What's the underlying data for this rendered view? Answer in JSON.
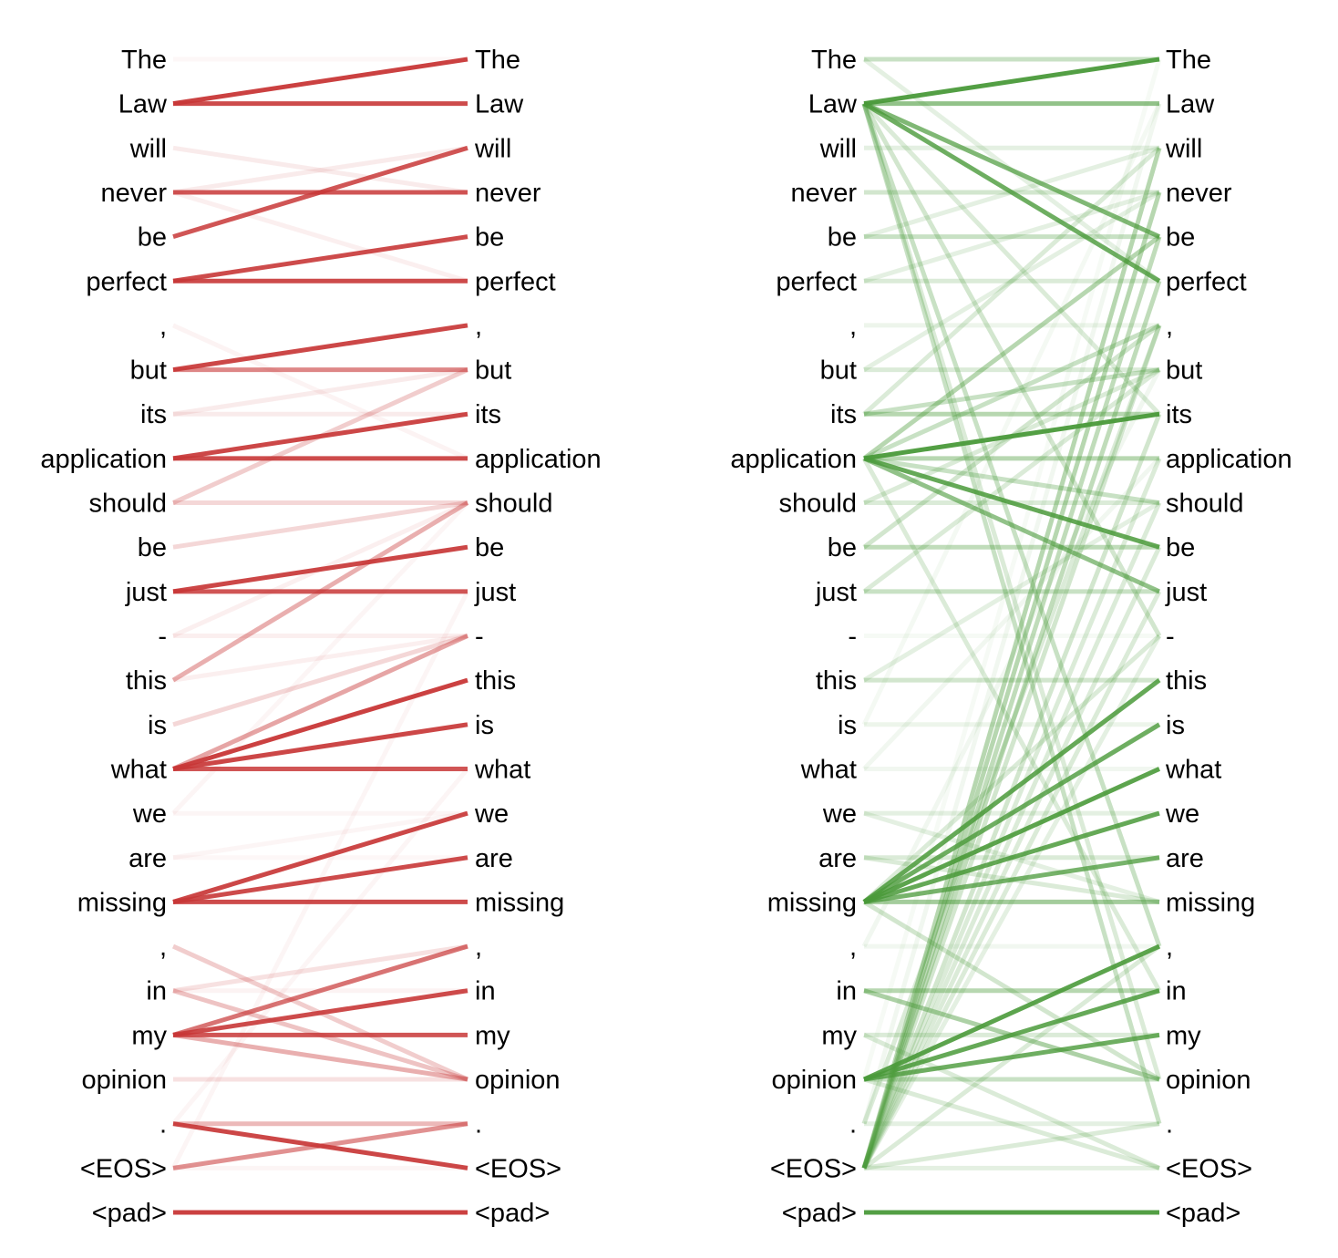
{
  "tokens": [
    "The",
    "Law",
    "will",
    "never",
    "be",
    "perfect",
    ",",
    "but",
    "its",
    "application",
    "should",
    "be",
    "just",
    "-",
    "this",
    "is",
    "what",
    "we",
    "are",
    "missing",
    ",",
    "in",
    "my",
    "opinion",
    ".",
    "<EOS>",
    "<pad>"
  ],
  "panels": [
    {
      "name": "red",
      "color": "#c83737",
      "links": [
        [
          0,
          0,
          0.04
        ],
        [
          1,
          0,
          0.95
        ],
        [
          1,
          1,
          0.9
        ],
        [
          2,
          3,
          0.1
        ],
        [
          3,
          2,
          0.1
        ],
        [
          3,
          3,
          0.85
        ],
        [
          4,
          2,
          0.85
        ],
        [
          3,
          5,
          0.08
        ],
        [
          5,
          4,
          0.9
        ],
        [
          5,
          5,
          0.9
        ],
        [
          7,
          6,
          0.92
        ],
        [
          7,
          7,
          0.6
        ],
        [
          6,
          9,
          0.06
        ],
        [
          8,
          8,
          0.1
        ],
        [
          8,
          7,
          0.1
        ],
        [
          9,
          8,
          0.92
        ],
        [
          9,
          9,
          0.9
        ],
        [
          10,
          7,
          0.25
        ],
        [
          10,
          10,
          0.2
        ],
        [
          11,
          10,
          0.2
        ],
        [
          12,
          11,
          0.92
        ],
        [
          12,
          12,
          0.85
        ],
        [
          13,
          13,
          0.08
        ],
        [
          13,
          10,
          0.08
        ],
        [
          14,
          10,
          0.4
        ],
        [
          15,
          13,
          0.2
        ],
        [
          14,
          13,
          0.08
        ],
        [
          16,
          13,
          0.45
        ],
        [
          16,
          14,
          0.95
        ],
        [
          16,
          15,
          0.92
        ],
        [
          16,
          16,
          0.85
        ],
        [
          17,
          17,
          0.05
        ],
        [
          18,
          17,
          0.05
        ],
        [
          18,
          18,
          0.04
        ],
        [
          19,
          17,
          0.92
        ],
        [
          19,
          18,
          0.9
        ],
        [
          19,
          19,
          0.9
        ],
        [
          17,
          10,
          0.05
        ],
        [
          20,
          23,
          0.25
        ],
        [
          21,
          21,
          0.06
        ],
        [
          21,
          20,
          0.15
        ],
        [
          22,
          20,
          0.7
        ],
        [
          22,
          21,
          0.9
        ],
        [
          22,
          22,
          0.85
        ],
        [
          22,
          23,
          0.4
        ],
        [
          21,
          23,
          0.3
        ],
        [
          23,
          23,
          0.15
        ],
        [
          24,
          25,
          0.92
        ],
        [
          24,
          24,
          0.35
        ],
        [
          25,
          24,
          0.55
        ],
        [
          25,
          25,
          0.05
        ],
        [
          26,
          26,
          0.95
        ],
        [
          25,
          12,
          0.05
        ],
        [
          24,
          16,
          0.05
        ]
      ]
    },
    {
      "name": "green",
      "color": "#4a9a3a",
      "links": [
        [
          0,
          0,
          0.3
        ],
        [
          0,
          5,
          0.15
        ],
        [
          1,
          0,
          0.95
        ],
        [
          1,
          1,
          0.6
        ],
        [
          1,
          4,
          0.7
        ],
        [
          1,
          5,
          0.8
        ],
        [
          1,
          8,
          0.2
        ],
        [
          1,
          13,
          0.25
        ],
        [
          1,
          20,
          0.3
        ],
        [
          1,
          24,
          0.3
        ],
        [
          1,
          23,
          0.2
        ],
        [
          2,
          2,
          0.15
        ],
        [
          3,
          3,
          0.25
        ],
        [
          4,
          4,
          0.3
        ],
        [
          4,
          2,
          0.15
        ],
        [
          5,
          5,
          0.2
        ],
        [
          5,
          3,
          0.15
        ],
        [
          6,
          6,
          0.1
        ],
        [
          7,
          7,
          0.2
        ],
        [
          7,
          3,
          0.15
        ],
        [
          8,
          8,
          0.4
        ],
        [
          8,
          7,
          0.3
        ],
        [
          8,
          2,
          0.2
        ],
        [
          9,
          8,
          0.95
        ],
        [
          9,
          9,
          0.4
        ],
        [
          9,
          11,
          0.85
        ],
        [
          9,
          12,
          0.6
        ],
        [
          9,
          4,
          0.4
        ],
        [
          9,
          6,
          0.3
        ],
        [
          9,
          10,
          0.3
        ],
        [
          9,
          21,
          0.2
        ],
        [
          10,
          10,
          0.2
        ],
        [
          10,
          7,
          0.2
        ],
        [
          11,
          11,
          0.35
        ],
        [
          11,
          6,
          0.25
        ],
        [
          12,
          12,
          0.3
        ],
        [
          12,
          7,
          0.2
        ],
        [
          13,
          13,
          0.05
        ],
        [
          14,
          14,
          0.25
        ],
        [
          14,
          10,
          0.15
        ],
        [
          15,
          15,
          0.1
        ],
        [
          16,
          16,
          0.08
        ],
        [
          17,
          17,
          0.15
        ],
        [
          17,
          19,
          0.15
        ],
        [
          18,
          18,
          0.2
        ],
        [
          18,
          19,
          0.2
        ],
        [
          19,
          14,
          0.85
        ],
        [
          19,
          15,
          0.8
        ],
        [
          19,
          16,
          0.9
        ],
        [
          19,
          17,
          0.85
        ],
        [
          19,
          18,
          0.75
        ],
        [
          19,
          19,
          0.5
        ],
        [
          19,
          13,
          0.2
        ],
        [
          19,
          23,
          0.25
        ],
        [
          20,
          20,
          0.08
        ],
        [
          21,
          21,
          0.4
        ],
        [
          21,
          23,
          0.45
        ],
        [
          22,
          22,
          0.2
        ],
        [
          22,
          25,
          0.2
        ],
        [
          23,
          20,
          0.9
        ],
        [
          23,
          21,
          0.85
        ],
        [
          23,
          22,
          0.8
        ],
        [
          23,
          23,
          0.3
        ],
        [
          23,
          25,
          0.2
        ],
        [
          24,
          6,
          0.2
        ],
        [
          24,
          24,
          0.15
        ],
        [
          25,
          2,
          0.4
        ],
        [
          25,
          3,
          0.4
        ],
        [
          25,
          4,
          0.35
        ],
        [
          25,
          5,
          0.35
        ],
        [
          25,
          6,
          0.25
        ],
        [
          25,
          8,
          0.25
        ],
        [
          25,
          9,
          0.2
        ],
        [
          25,
          10,
          0.2
        ],
        [
          25,
          11,
          0.2
        ],
        [
          25,
          12,
          0.2
        ],
        [
          25,
          13,
          0.15
        ],
        [
          25,
          20,
          0.2
        ],
        [
          25,
          24,
          0.2
        ],
        [
          25,
          25,
          0.15
        ],
        [
          26,
          26,
          0.95
        ],
        [
          23,
          0,
          0.05
        ],
        [
          24,
          1,
          0.08
        ],
        [
          20,
          7,
          0.08
        ],
        [
          15,
          1,
          0.06
        ],
        [
          16,
          9,
          0.08
        ]
      ]
    }
  ]
}
